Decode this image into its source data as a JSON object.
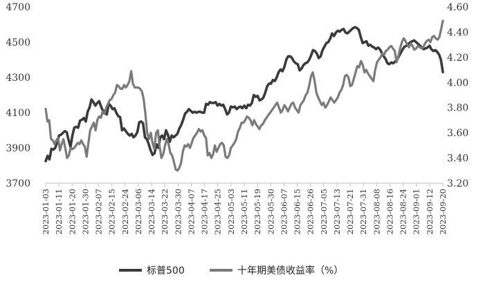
{
  "chart_data": {
    "type": "line",
    "x_ticks": [
      "2023-01-03",
      "2023-01-11",
      "2023-01-20",
      "2023-01-30",
      "2023-02-07",
      "2023-02-15",
      "2023-02-24",
      "2023-03-06",
      "2023-03-14",
      "2023-03-22",
      "2023-03-30",
      "2023-04-07",
      "2023-04-17",
      "2023-04-25",
      "2023-05-03",
      "2023-05-11",
      "2023-05-19",
      "2023-05-30",
      "2023-06-07",
      "2023-06-15",
      "2023-06-26",
      "2023-07-05",
      "2023-07-13",
      "2023-07-21",
      "2023-07-31",
      "2023-08-08",
      "2023-08-16",
      "2023-08-24",
      "2023-09-01",
      "2023-09-12",
      "2023-09-20"
    ],
    "y_left": {
      "ticks": [
        3700,
        3900,
        4100,
        4300,
        4500,
        4700
      ],
      "ylim": [
        3700,
        4700
      ]
    },
    "y_right": {
      "ticks": [
        "3.20",
        "3.40",
        "3.60",
        "3.80",
        "4.00",
        "4.20",
        "4.40",
        "4.60"
      ],
      "ylim": [
        3.2,
        4.6
      ]
    },
    "series": [
      {
        "name": "标普500",
        "axis": "left",
        "color": "#3a3a3a",
        "values": [
          3825,
          3855,
          3835,
          3895,
          3890,
          3900,
          3930,
          3970,
          3975,
          3985,
          3995,
          3990,
          3945,
          3905,
          3970,
          4015,
          4020,
          4015,
          4055,
          4060,
          4070,
          4050,
          4105,
          4130,
          4175,
          4160,
          4140,
          4155,
          4165,
          4135,
          4110,
          4110,
          4090,
          4150,
          4140,
          4120,
          4125,
          4100,
          4080,
          4075,
          4000,
          4010,
          3995,
          3980,
          3970,
          3980,
          3960,
          3970,
          3990,
          4045,
          4050,
          4040,
          3960,
          3950,
          3920,
          3885,
          3860,
          3870,
          3920,
          3900,
          3960,
          3970,
          3950,
          4000,
          3975,
          3935,
          3970,
          3960,
          3970,
          3980,
          4010,
          4030,
          4060,
          4095,
          4105,
          4120,
          4110,
          4100,
          4105,
          4100,
          4105,
          4105,
          4100,
          4100,
          4150,
          4145,
          4160,
          4155,
          4155,
          4160,
          4140,
          4150,
          4140,
          4145,
          4120,
          4090,
          4100,
          4135,
          4130,
          4135,
          4120,
          4130,
          4135,
          4125,
          4140,
          4125,
          4145,
          4140,
          4155,
          4200,
          4190,
          4195,
          4170,
          4175,
          4185,
          4215,
          4250,
          4265,
          4265,
          4285,
          4280,
          4300,
          4330,
          4345,
          4335,
          4360,
          4400,
          4420,
          4420,
          4410,
          4390,
          4380,
          4375,
          4340,
          4350,
          4370,
          4380,
          4385,
          4400,
          4425,
          4455,
          4450,
          4435,
          4410,
          4420,
          4455,
          4475,
          4495,
          4500,
          4520,
          4550,
          4535,
          4555,
          4565,
          4560,
          4570,
          4575,
          4555,
          4550,
          4560,
          4570,
          4580,
          4585,
          4580,
          4570,
          4530,
          4495,
          4500,
          4505,
          4480,
          4485,
          4475,
          4470,
          4460,
          4470,
          4460,
          4440,
          4420,
          4405,
          4380,
          4375,
          4385,
          4380,
          4390,
          4400,
          4420,
          4440,
          4460,
          4475,
          4480,
          4490,
          4500,
          4505,
          4510,
          4500,
          4490,
          4480,
          4470,
          4460,
          4465,
          4470,
          4480,
          4460,
          4450,
          4455,
          4445,
          4430,
          4400,
          4330
        ]
      },
      {
        "name": "十年期美债收益率（%）",
        "axis": "right",
        "color": "#7a7a7a",
        "values": [
          3.79,
          3.69,
          3.7,
          3.55,
          3.54,
          3.51,
          3.54,
          3.56,
          3.46,
          3.51,
          3.55,
          3.48,
          3.4,
          3.42,
          3.48,
          3.47,
          3.48,
          3.5,
          3.52,
          3.51,
          3.54,
          3.51,
          3.49,
          3.41,
          3.52,
          3.62,
          3.65,
          3.68,
          3.62,
          3.7,
          3.73,
          3.72,
          3.77,
          3.75,
          3.8,
          3.83,
          3.86,
          3.87,
          3.9,
          3.92,
          3.98,
          3.97,
          3.95,
          3.95,
          3.98,
          3.96,
          3.98,
          4.01,
          4.09,
          3.99,
          3.96,
          3.96,
          3.96,
          3.95,
          3.93,
          3.87,
          3.75,
          3.6,
          3.55,
          3.6,
          3.52,
          3.47,
          3.6,
          3.62,
          3.49,
          3.4,
          3.43,
          3.5,
          3.55,
          3.51,
          3.44,
          3.42,
          3.37,
          3.31,
          3.3,
          3.32,
          3.36,
          3.45,
          3.5,
          3.49,
          3.51,
          3.48,
          3.52,
          3.56,
          3.58,
          3.6,
          3.63,
          3.61,
          3.62,
          3.58,
          3.56,
          3.42,
          3.44,
          3.4,
          3.43,
          3.5,
          3.45,
          3.48,
          3.51,
          3.52,
          3.5,
          3.41,
          3.4,
          3.42,
          3.48,
          3.5,
          3.52,
          3.55,
          3.61,
          3.64,
          3.68,
          3.68,
          3.7,
          3.73,
          3.72,
          3.7,
          3.66,
          3.7,
          3.67,
          3.65,
          3.63,
          3.66,
          3.67,
          3.7,
          3.72,
          3.74,
          3.76,
          3.78,
          3.8,
          3.82,
          3.84,
          3.8,
          3.76,
          3.78,
          3.82,
          3.8,
          3.77,
          3.8,
          3.83,
          3.84,
          3.8,
          3.78,
          3.76,
          3.82,
          3.84,
          3.86,
          3.9,
          3.92,
          3.98,
          4.05,
          4.08,
          4.01,
          3.92,
          3.88,
          3.85,
          3.82,
          3.84,
          3.8,
          3.82,
          3.85,
          3.88,
          3.86,
          3.84,
          3.86,
          3.88,
          3.92,
          3.94,
          3.98,
          4.05,
          4.06,
          4.04,
          3.97,
          3.98,
          4.03,
          4.08,
          4.13,
          4.12,
          4.17,
          4.14,
          4.08,
          4.1,
          4.07,
          4.05,
          4.03,
          4.01,
          4.1,
          4.16,
          4.18,
          4.2,
          4.23,
          4.22,
          4.25,
          4.26,
          4.28,
          4.29,
          4.27,
          4.25,
          4.16,
          4.21,
          4.27,
          4.32,
          4.35,
          4.33,
          4.3,
          4.28,
          4.31,
          4.29,
          4.26,
          4.27,
          4.29,
          4.28,
          4.27,
          4.28,
          4.31,
          4.33,
          4.34,
          4.32,
          4.36,
          4.37,
          4.35,
          4.34,
          4.36,
          4.42,
          4.49
        ]
      }
    ],
    "legend": {
      "placement": "bottom"
    }
  }
}
